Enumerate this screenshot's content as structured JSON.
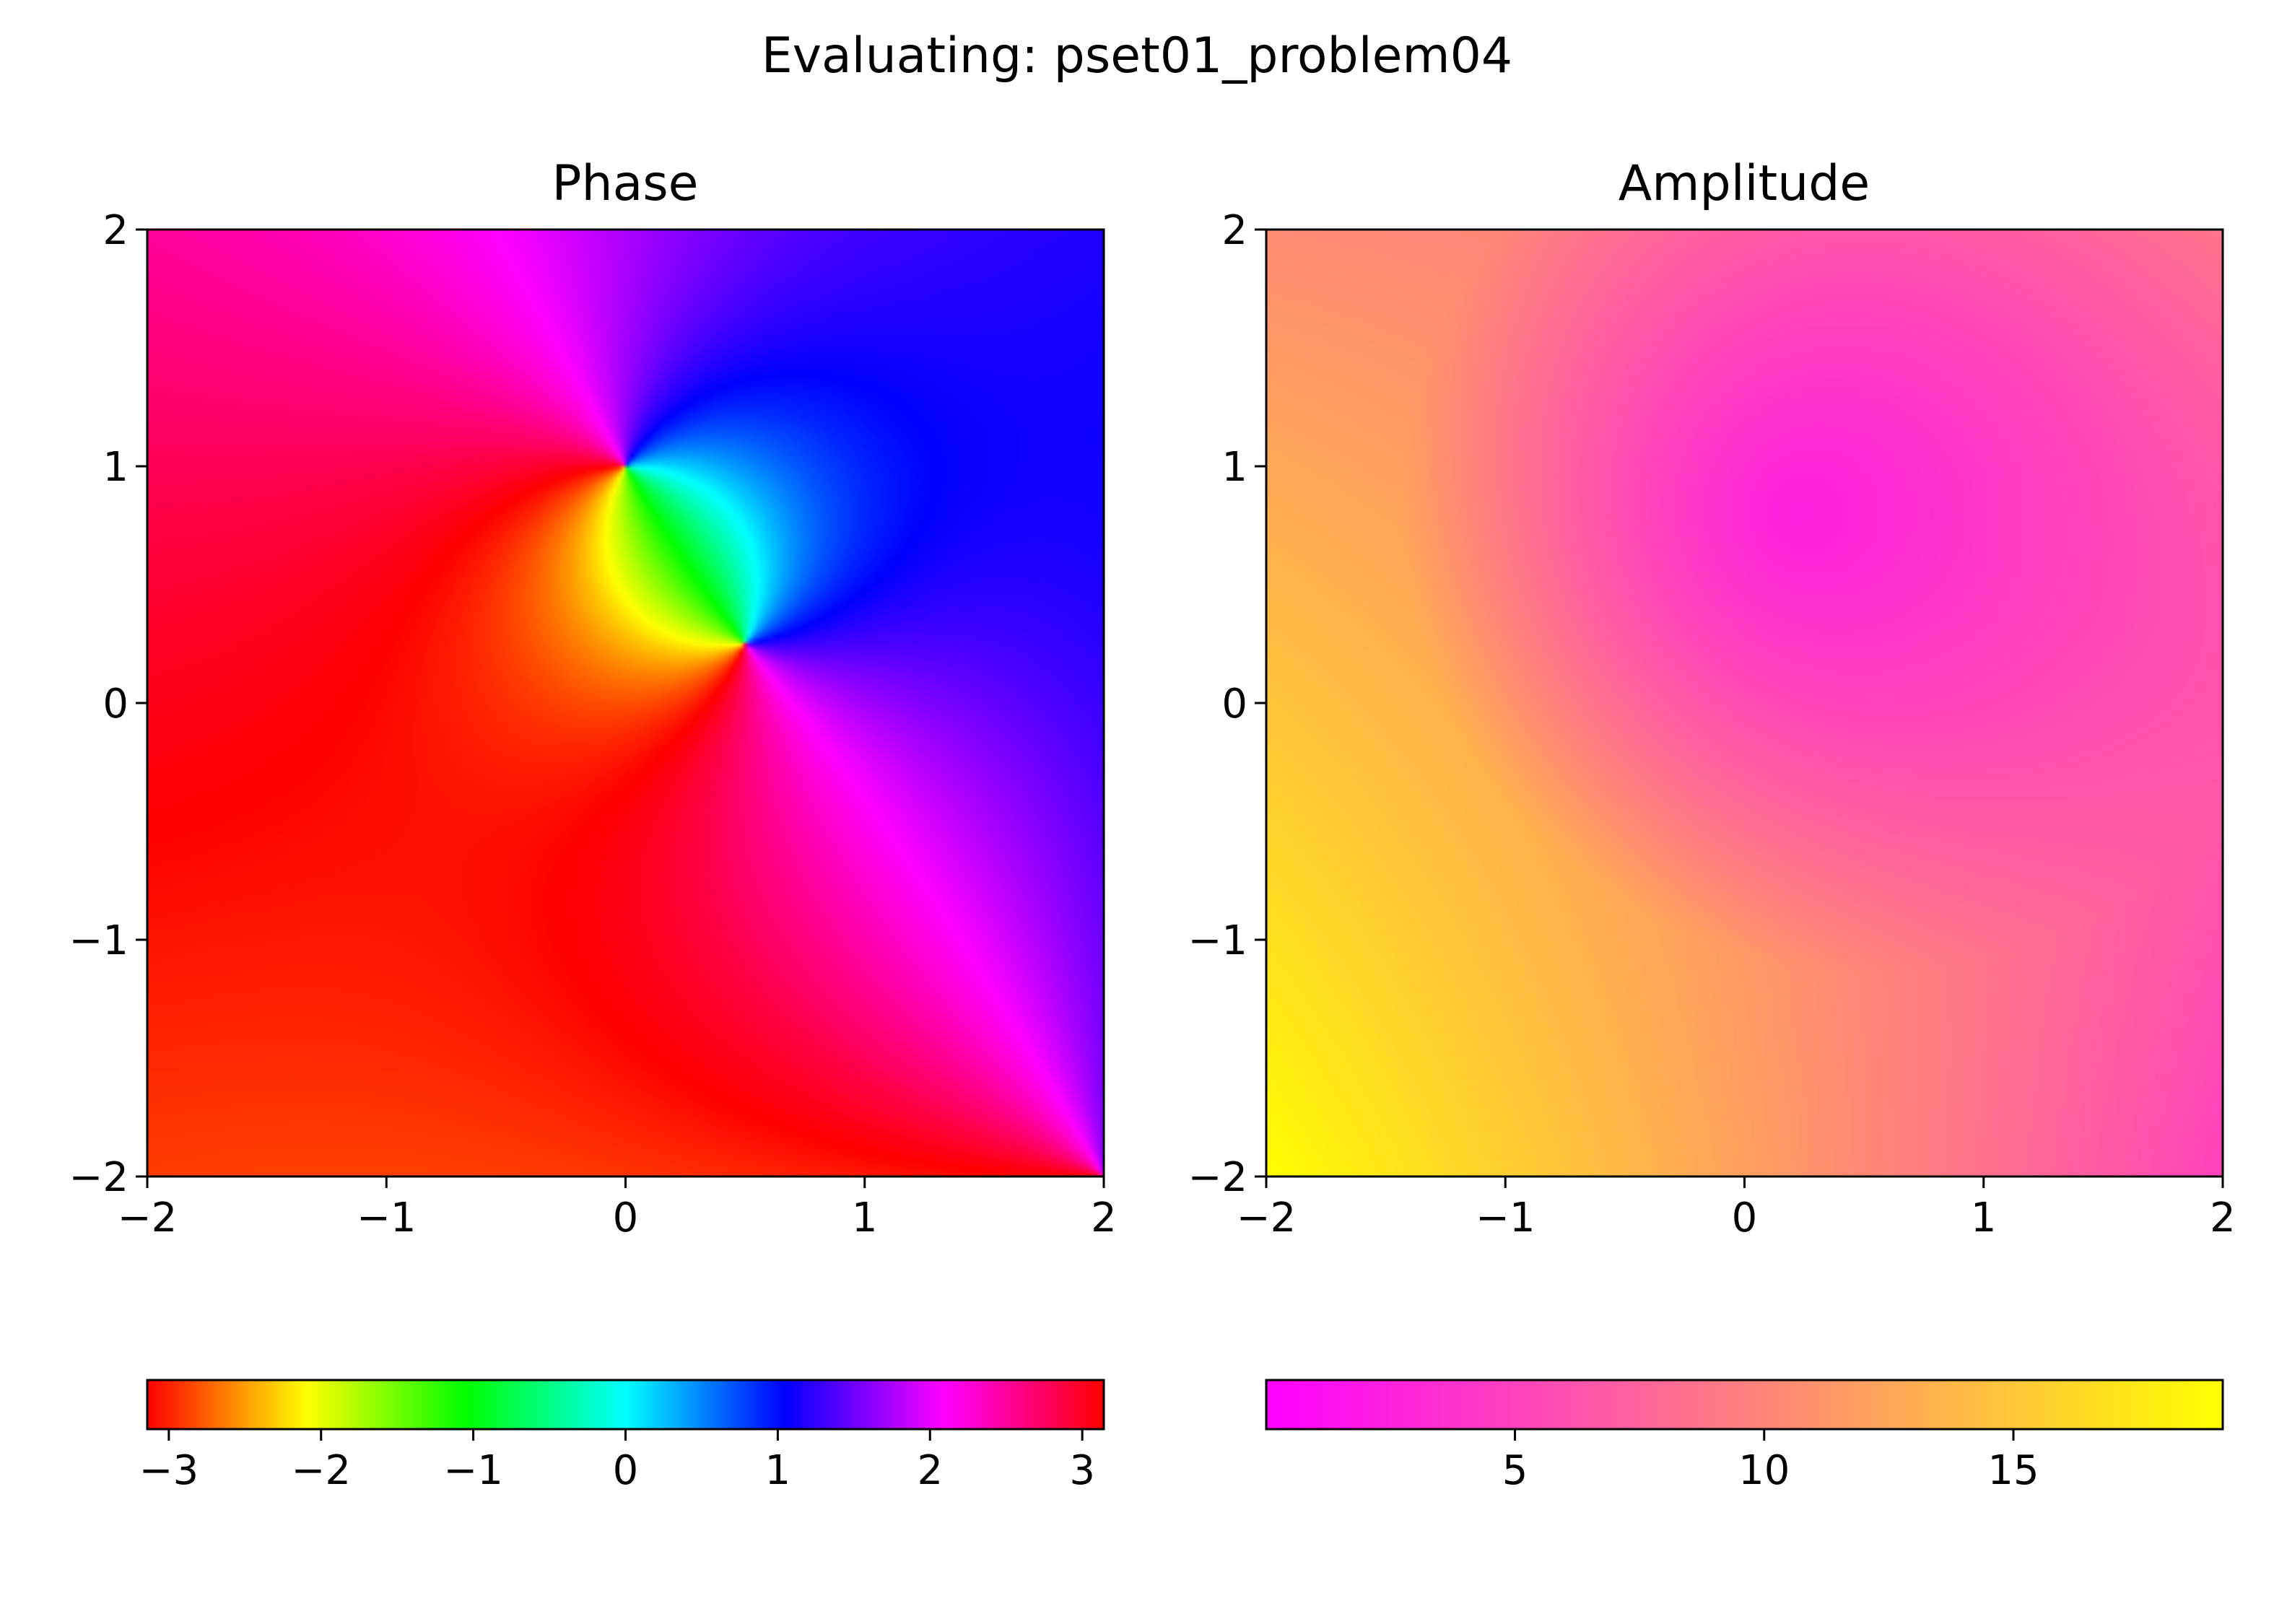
{
  "figure": {
    "title": "Evaluating: pset01_problem04"
  },
  "chart_data": [
    {
      "type": "heatmap",
      "title": "Phase",
      "xlabel": "",
      "ylabel": "",
      "xlim": [
        -2,
        2
      ],
      "ylim": [
        -2,
        2
      ],
      "xticks": [
        -2,
        -1,
        0,
        1,
        2
      ],
      "yticks": [
        -2,
        -1,
        0,
        1,
        2
      ],
      "xtick_labels": [
        "−2",
        "−1",
        "0",
        "1",
        "2"
      ],
      "ytick_labels": [
        "−2",
        "−1",
        "0",
        "1",
        "2"
      ],
      "field": "phase",
      "zeros": [
        [
          0,
          1
        ],
        [
          2,
          -2
        ]
      ],
      "poles": [
        [
          0.5,
          0.25
        ]
      ],
      "colormap": "hsv",
      "grid": false,
      "colorbar": {
        "orientation": "horizontal",
        "placement": "below",
        "range": [
          -3.14159,
          3.14159
        ],
        "ticks": [
          -3,
          -2,
          -1,
          0,
          1,
          2,
          3
        ],
        "tick_labels": [
          "−3",
          "−2",
          "−1",
          "0",
          "1",
          "2",
          "3"
        ],
        "colors": [
          "#ff0000",
          "#ffff00",
          "#00ff00",
          "#00ffff",
          "#0000ff",
          "#ff00ff",
          "#ff0000"
        ]
      }
    },
    {
      "type": "heatmap",
      "title": "Amplitude",
      "xlabel": "",
      "ylabel": "",
      "xlim": [
        -2,
        2
      ],
      "ylim": [
        -2,
        2
      ],
      "xticks": [
        -2,
        -1,
        0,
        1,
        2
      ],
      "yticks": [
        -2,
        -1,
        0,
        1,
        2
      ],
      "xtick_labels": [
        "−2",
        "−1",
        "0",
        "1",
        "2"
      ],
      "ytick_labels": [
        "−2",
        "−1",
        "0",
        "1",
        "2"
      ],
      "field": "amplitude",
      "value_range": [
        0.01,
        19.2
      ],
      "corner_values": {
        "bottom_left": 19.2,
        "top_left": 10.5,
        "top_right": 9.0,
        "bottom_right": 5.0,
        "center": 1.0
      },
      "colormap": "spring",
      "grid": false,
      "colorbar": {
        "orientation": "horizontal",
        "placement": "below",
        "range": [
          0.01,
          19.2
        ],
        "ticks": [
          5,
          10,
          15
        ],
        "tick_labels": [
          "5",
          "10",
          "15"
        ],
        "colors": [
          "#ff00ff",
          "#ffff00"
        ]
      }
    }
  ]
}
